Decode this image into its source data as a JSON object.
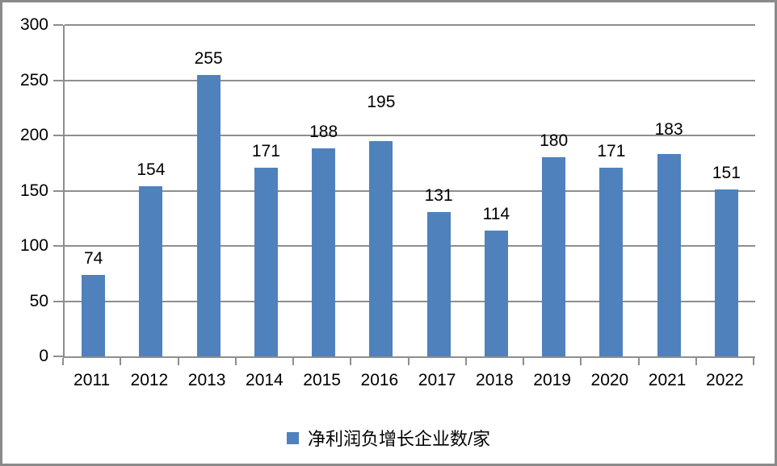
{
  "chart_data": {
    "type": "bar",
    "categories": [
      "2011",
      "2012",
      "2013",
      "2014",
      "2015",
      "2016",
      "2017",
      "2018",
      "2019",
      "2020",
      "2021",
      "2022"
    ],
    "values": [
      74,
      154,
      255,
      171,
      188,
      195,
      131,
      114,
      180,
      171,
      183,
      151
    ],
    "series": [
      {
        "name": "净利润负增长企业数/家",
        "values": [
          74,
          154,
          255,
          171,
          188,
          195,
          131,
          114,
          180,
          171,
          183,
          151
        ]
      }
    ],
    "title": "",
    "xlabel": "",
    "ylabel": "",
    "ylim": [
      0,
      300
    ],
    "yticks": [
      0,
      50,
      100,
      150,
      200,
      250,
      300
    ],
    "grid": true,
    "data_labels": true,
    "legend_position": "bottom",
    "bar_color": "#4F81BD",
    "gridline_color": "#8e8e8e",
    "frame_color": "#8a8a8a",
    "text_color": "#000000",
    "data_label_extra_raise": [
      0,
      0,
      0,
      0,
      0,
      28,
      0,
      0,
      0,
      0,
      10,
      0
    ]
  },
  "legend": {
    "label": "净利润负增长企业数/家"
  }
}
